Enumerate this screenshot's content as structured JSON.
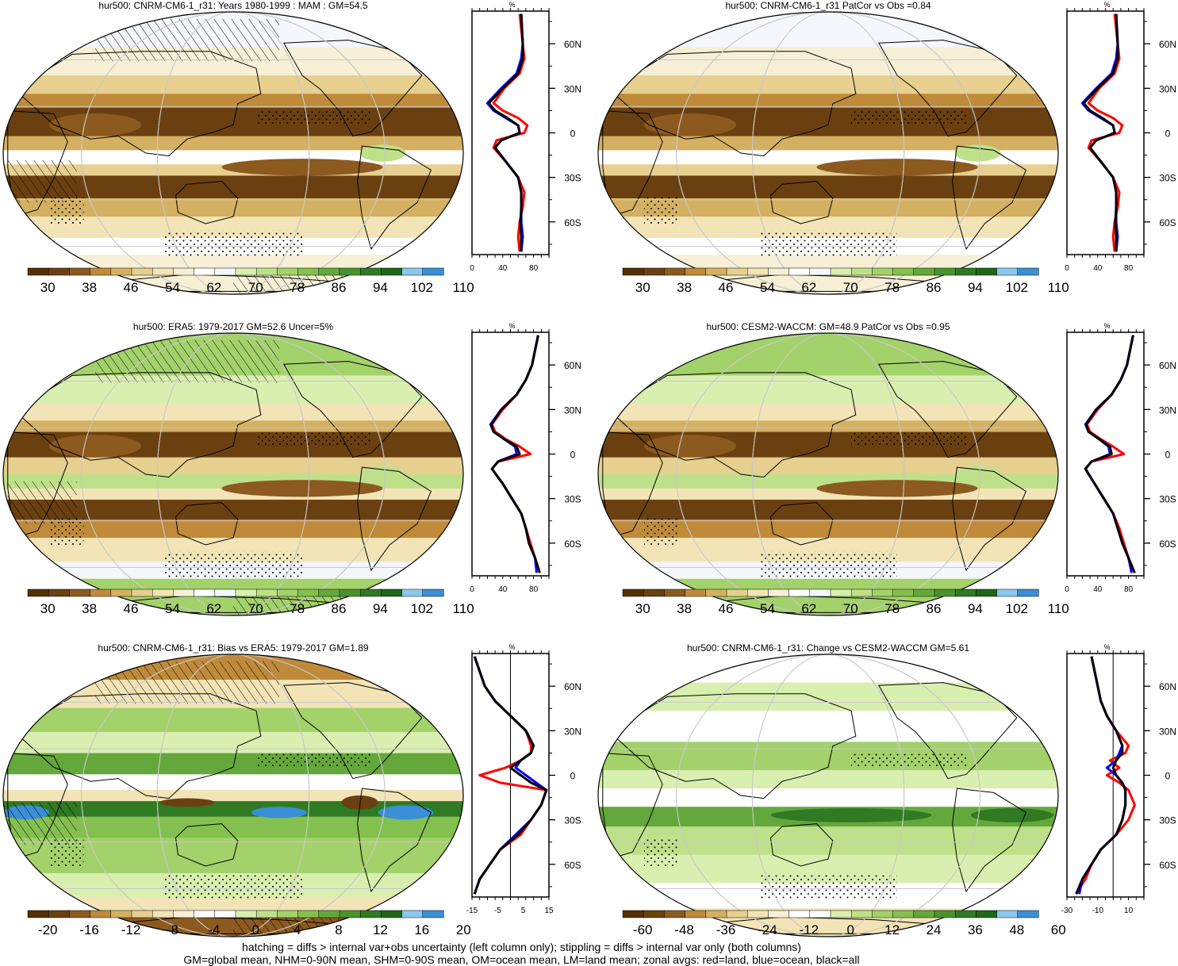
{
  "panels": [
    {
      "id": "p1",
      "title": "hur500: CNRM-CM6-1_r31: Years 1980-1999 : MAM : GM=54.5",
      "colorbar": [
        "30",
        "38",
        "46",
        "54",
        "62",
        "70",
        "78",
        "86",
        "94",
        "102",
        "110"
      ],
      "palette": "hur",
      "overlay": "hatch+stipple",
      "zonal_xticks": [
        "0",
        "40",
        "80"
      ],
      "zonal_unit": "%",
      "zonal_zero_line": false
    },
    {
      "id": "p2",
      "title": "hur500: CNRM-CM6-1_r31 PatCor vs Obs =0.84",
      "colorbar": [
        "30",
        "38",
        "46",
        "54",
        "62",
        "70",
        "78",
        "86",
        "94",
        "102",
        "110"
      ],
      "palette": "hur",
      "overlay": "stipple",
      "zonal_xticks": [
        "0",
        "40",
        "80"
      ],
      "zonal_unit": "%",
      "zonal_zero_line": false
    },
    {
      "id": "p3",
      "title": "hur500: ERA5: 1979-2017 GM=52.6 Uncer=5%",
      "colorbar": [
        "30",
        "38",
        "46",
        "54",
        "62",
        "70",
        "78",
        "86",
        "94",
        "102",
        "110"
      ],
      "palette": "hur",
      "overlay": "hatch+stipple",
      "zonal_xticks": [
        "0",
        "40",
        "80"
      ],
      "zonal_unit": "%",
      "zonal_zero_line": false
    },
    {
      "id": "p4",
      "title": "hur500: CESM2-WACCM: GM=48.9 PatCor vs Obs =0.95",
      "colorbar": [
        "30",
        "38",
        "46",
        "54",
        "62",
        "70",
        "78",
        "86",
        "94",
        "102",
        "110"
      ],
      "palette": "hur",
      "overlay": "stipple",
      "zonal_xticks": [
        "0",
        "40",
        "80"
      ],
      "zonal_unit": "%",
      "zonal_zero_line": false
    },
    {
      "id": "p5",
      "title": "hur500: CNRM-CM6-1_r31: Bias vs ERA5: 1979-2017 GM=1.89",
      "colorbar": [
        "-20",
        "-16",
        "-12",
        "-8",
        "-4",
        "0",
        "4",
        "8",
        "12",
        "16",
        "20"
      ],
      "palette": "diff",
      "overlay": "hatch+stipple",
      "zonal_xticks": [
        "-15",
        "-5",
        "5",
        "15"
      ],
      "zonal_unit": "%",
      "zonal_zero_line": true
    },
    {
      "id": "p6",
      "title": "hur500: CNRM-CM6-1_r31: Change vs CESM2-WACCM GM=5.61",
      "colorbar": [
        "-60",
        "-48",
        "-36",
        "-24",
        "-12",
        "0",
        "12",
        "24",
        "36",
        "48",
        "60"
      ],
      "palette": "diff",
      "overlay": "stipple",
      "zonal_xticks": [
        "-30",
        "-10",
        "10"
      ],
      "zonal_unit": "%",
      "zonal_zero_line": true
    }
  ],
  "lat_labels": [
    "60N",
    "30N",
    "0",
    "30S",
    "60S"
  ],
  "colors": {
    "hur": [
      "#543005",
      "#6b4010",
      "#8c5a1f",
      "#bf8a3a",
      "#d4b062",
      "#e6cf8f",
      "#f2e4b6",
      "#f7efd6",
      "#ffffff",
      "#f4f8fc",
      "#d9efb0",
      "#bfe08a",
      "#a3d16a",
      "#84c04f",
      "#64a83b",
      "#4a932e",
      "#2f7a22",
      "#1f6619",
      "#8cc8f0",
      "#3a8fd6"
    ],
    "diff": [
      "#543005",
      "#6b4010",
      "#8c5a1f",
      "#bf8a3a",
      "#d4b062",
      "#e6cf8f",
      "#f2e4b6",
      "#f7efd6",
      "#ffffff",
      "#ffffff",
      "#d9efb0",
      "#bfe08a",
      "#a3d16a",
      "#84c04f",
      "#64a83b",
      "#4a932e",
      "#2f7a22",
      "#1f6619",
      "#8cc8f0",
      "#3a8fd6"
    ],
    "land_line": "#ff0000",
    "ocean_line": "#0000ff",
    "all_line": "#000000"
  },
  "chart_data": [
    {
      "type": "line",
      "title": "hur500: CNRM-CM6-1_r31: Years 1980-1999 : MAM : GM=54.5",
      "xlabel": "%",
      "xlim": [
        0,
        100
      ],
      "ylim": [
        -82,
        82
      ],
      "series": [
        {
          "name": "land",
          "x": [
            62,
            60,
            62,
            66,
            68,
            60,
            45,
            28,
            32,
            68,
            72,
            60,
            40,
            28,
            42,
            62,
            68,
            66,
            62
          ],
          "y": [
            -80,
            -70,
            -60,
            -50,
            -40,
            -30,
            -20,
            -10,
            -5,
            0,
            5,
            10,
            15,
            20,
            30,
            40,
            50,
            60,
            80
          ]
        },
        {
          "name": "ocean",
          "x": [
            64,
            66,
            64,
            64,
            64,
            60,
            45,
            30,
            38,
            62,
            60,
            44,
            28,
            20,
            38,
            58,
            64,
            66,
            64
          ],
          "y": [
            -80,
            -70,
            -60,
            -50,
            -40,
            -30,
            -20,
            -10,
            -5,
            0,
            5,
            10,
            15,
            20,
            30,
            40,
            50,
            60,
            80
          ]
        },
        {
          "name": "all",
          "x": [
            64,
            64,
            63,
            64,
            64,
            60,
            45,
            30,
            38,
            62,
            60,
            46,
            30,
            22,
            40,
            60,
            66,
            66,
            64
          ],
          "y": [
            -80,
            -70,
            -60,
            -50,
            -40,
            -30,
            -20,
            -10,
            -5,
            0,
            5,
            10,
            15,
            20,
            30,
            40,
            50,
            60,
            80
          ]
        }
      ]
    },
    {
      "type": "line",
      "title": "hur500: CNRM-CM6-1_r31 PatCor vs Obs =0.84",
      "xlabel": "%",
      "xlim": [
        0,
        100
      ],
      "ylim": [
        -82,
        82
      ],
      "series": [
        {
          "name": "land",
          "x": [
            62,
            60,
            62,
            66,
            68,
            60,
            45,
            28,
            32,
            68,
            72,
            60,
            40,
            28,
            42,
            62,
            68,
            66,
            62
          ],
          "y": [
            -80,
            -70,
            -60,
            -50,
            -40,
            -30,
            -20,
            -10,
            -5,
            0,
            5,
            10,
            15,
            20,
            30,
            40,
            50,
            60,
            80
          ]
        },
        {
          "name": "ocean",
          "x": [
            64,
            66,
            64,
            64,
            64,
            60,
            45,
            30,
            38,
            62,
            60,
            44,
            28,
            20,
            38,
            58,
            64,
            66,
            64
          ],
          "y": [
            -80,
            -70,
            -60,
            -50,
            -40,
            -30,
            -20,
            -10,
            -5,
            0,
            5,
            10,
            15,
            20,
            30,
            40,
            50,
            60,
            80
          ]
        },
        {
          "name": "all",
          "x": [
            64,
            64,
            63,
            64,
            64,
            60,
            45,
            30,
            38,
            62,
            60,
            46,
            30,
            22,
            40,
            60,
            66,
            66,
            64
          ],
          "y": [
            -80,
            -70,
            -60,
            -50,
            -40,
            -30,
            -20,
            -10,
            -5,
            0,
            5,
            10,
            15,
            20,
            30,
            40,
            50,
            60,
            80
          ]
        }
      ]
    },
    {
      "type": "line",
      "title": "hur500: ERA5: 1979-2017 GM=52.6 Uncer=5%",
      "xlabel": "%",
      "xlim": [
        0,
        100
      ],
      "ylim": [
        -82,
        82
      ],
      "series": [
        {
          "name": "land",
          "x": [
            88,
            82,
            76,
            70,
            64,
            52,
            40,
            26,
            34,
            76,
            62,
            44,
            30,
            26,
            40,
            58,
            70,
            78,
            86
          ],
          "y": [
            -80,
            -70,
            -60,
            -50,
            -40,
            -30,
            -20,
            -10,
            -5,
            0,
            5,
            10,
            15,
            20,
            30,
            40,
            50,
            60,
            80
          ]
        },
        {
          "name": "ocean",
          "x": [
            84,
            82,
            74,
            70,
            64,
            52,
            40,
            26,
            34,
            58,
            56,
            42,
            28,
            24,
            38,
            58,
            70,
            78,
            86
          ],
          "y": [
            -80,
            -70,
            -60,
            -50,
            -40,
            -30,
            -20,
            -10,
            -5,
            0,
            5,
            10,
            15,
            20,
            30,
            40,
            50,
            60,
            80
          ]
        },
        {
          "name": "all",
          "x": [
            88,
            82,
            74,
            70,
            64,
            52,
            40,
            26,
            34,
            62,
            58,
            42,
            28,
            25,
            38,
            58,
            70,
            78,
            86
          ],
          "y": [
            -80,
            -70,
            -60,
            -50,
            -40,
            -30,
            -20,
            -10,
            -5,
            0,
            5,
            10,
            15,
            20,
            30,
            40,
            50,
            60,
            80
          ]
        }
      ]
    },
    {
      "type": "line",
      "title": "hur500: CESM2-WACCM: GM=48.9 PatCor vs Obs =0.95",
      "xlabel": "%",
      "xlim": [
        0,
        100
      ],
      "ylim": [
        -82,
        82
      ],
      "series": [
        {
          "name": "land",
          "x": [
            88,
            80,
            74,
            68,
            60,
            48,
            36,
            24,
            32,
            74,
            60,
            44,
            30,
            26,
            40,
            58,
            70,
            78,
            86
          ],
          "y": [
            -80,
            -70,
            -60,
            -50,
            -40,
            -30,
            -20,
            -10,
            -5,
            0,
            5,
            10,
            15,
            20,
            30,
            40,
            50,
            60,
            80
          ]
        },
        {
          "name": "ocean",
          "x": [
            84,
            80,
            72,
            66,
            60,
            48,
            36,
            24,
            32,
            56,
            54,
            42,
            28,
            24,
            38,
            58,
            70,
            78,
            86
          ],
          "y": [
            -80,
            -70,
            -60,
            -50,
            -40,
            -30,
            -20,
            -10,
            -5,
            0,
            5,
            10,
            15,
            20,
            30,
            40,
            50,
            60,
            80
          ]
        },
        {
          "name": "all",
          "x": [
            88,
            80,
            72,
            66,
            60,
            48,
            36,
            24,
            32,
            58,
            56,
            42,
            28,
            25,
            38,
            58,
            70,
            78,
            86
          ],
          "y": [
            -80,
            -70,
            -60,
            -50,
            -40,
            -30,
            -20,
            -10,
            -5,
            0,
            5,
            10,
            15,
            20,
            30,
            40,
            50,
            60,
            80
          ]
        }
      ]
    },
    {
      "type": "line",
      "title": "hur500: CNRM-CM6-1_r31: Bias vs ERA5: 1979-2017 GM=1.89",
      "xlabel": "%",
      "xlim": [
        -15,
        15
      ],
      "ylim": [
        -82,
        82
      ],
      "series": [
        {
          "name": "land",
          "x": [
            -14,
            -12,
            -8,
            -4,
            4,
            8,
            12,
            14,
            -4,
            -12,
            -2,
            4,
            8,
            8,
            6,
            0,
            -6,
            -10,
            -14
          ],
          "y": [
            -80,
            -70,
            -60,
            -50,
            -40,
            -30,
            -20,
            -10,
            -5,
            0,
            5,
            10,
            15,
            20,
            30,
            40,
            50,
            60,
            80
          ]
        },
        {
          "name": "ocean",
          "x": [
            -14,
            -12,
            -8,
            -4,
            2,
            8,
            12,
            14,
            10,
            6,
            2,
            4,
            8,
            9,
            6,
            0,
            -6,
            -10,
            -14
          ],
          "y": [
            -80,
            -70,
            -60,
            -50,
            -40,
            -30,
            -20,
            -10,
            -5,
            0,
            5,
            10,
            15,
            20,
            30,
            40,
            50,
            60,
            80
          ]
        },
        {
          "name": "all",
          "x": [
            -14,
            -12,
            -8,
            -4,
            3,
            8,
            12,
            14,
            8,
            4,
            0,
            4,
            8,
            9,
            6,
            0,
            -6,
            -10,
            -14
          ],
          "y": [
            -80,
            -70,
            -60,
            -50,
            -40,
            -30,
            -20,
            -10,
            -5,
            0,
            5,
            10,
            15,
            20,
            30,
            40,
            50,
            60,
            80
          ]
        }
      ]
    },
    {
      "type": "line",
      "title": "hur500: CNRM-CM6-1_r31: Change vs CESM2-WACCM GM=5.61",
      "xlabel": "%",
      "xlim": [
        -30,
        20
      ],
      "ylim": [
        -82,
        82
      ],
      "series": [
        {
          "name": "land",
          "x": [
            -24,
            -18,
            -14,
            -8,
            2,
            10,
            14,
            10,
            4,
            -4,
            4,
            -2,
            8,
            10,
            2,
            -4,
            -8,
            -10,
            -14
          ],
          "y": [
            -80,
            -70,
            -60,
            -50,
            -40,
            -30,
            -20,
            -10,
            -5,
            0,
            5,
            10,
            15,
            20,
            30,
            40,
            50,
            60,
            80
          ]
        },
        {
          "name": "ocean",
          "x": [
            -22,
            -20,
            -14,
            -8,
            2,
            6,
            8,
            8,
            6,
            2,
            -4,
            2,
            4,
            6,
            2,
            -4,
            -8,
            -10,
            -14
          ],
          "y": [
            -80,
            -70,
            -60,
            -50,
            -40,
            -30,
            -20,
            -10,
            -5,
            0,
            5,
            10,
            15,
            20,
            30,
            40,
            50,
            60,
            80
          ]
        },
        {
          "name": "all",
          "x": [
            -24,
            -20,
            -14,
            -8,
            2,
            6,
            8,
            8,
            6,
            2,
            0,
            2,
            6,
            6,
            2,
            -4,
            -8,
            -10,
            -14
          ],
          "y": [
            -80,
            -70,
            -60,
            -50,
            -40,
            -30,
            -20,
            -10,
            -5,
            0,
            5,
            10,
            15,
            20,
            30,
            40,
            50,
            60,
            80
          ]
        }
      ]
    }
  ],
  "footnote": {
    "line1": "hatching = diffs > internal var+obs uncertainty (left column only); stippling = diffs > internal var only (both columns)",
    "line2": "GM=global mean, NHM=0-90N mean, SHM=0-90S mean, OM=ocean mean, LM=land mean; zonal avgs: red=land, blue=ocean, black=all"
  }
}
